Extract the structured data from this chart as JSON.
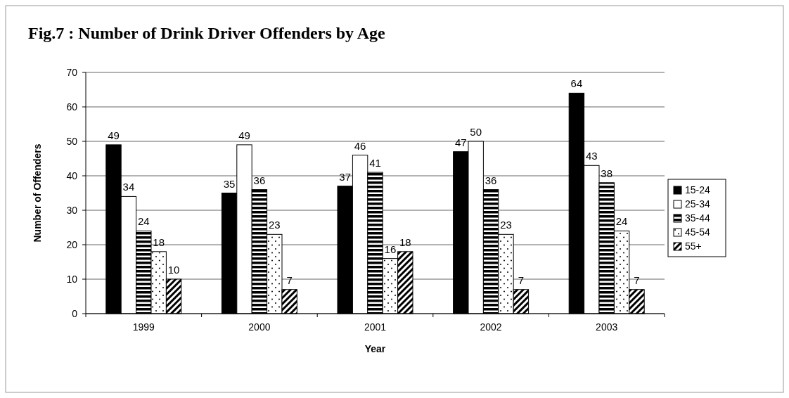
{
  "chart_data": {
    "type": "bar",
    "title": "Fig.7 : Number of Drink Driver Offenders by Age",
    "xlabel": "Year",
    "ylabel": "Number of Offenders",
    "categories": [
      "1999",
      "2000",
      "2001",
      "2002",
      "2003"
    ],
    "series": [
      {
        "name": "15-24",
        "color": "#000000",
        "values": [
          49,
          35,
          37,
          47,
          64
        ]
      },
      {
        "name": "25-34",
        "color": "#ffffff",
        "values": [
          34,
          49,
          46,
          50,
          43
        ]
      },
      {
        "name": "35-44",
        "color": "#000000",
        "values": [
          24,
          36,
          41,
          36,
          38
        ]
      },
      {
        "name": "45-54",
        "color": "#ffffff",
        "values": [
          18,
          23,
          16,
          23,
          24
        ]
      },
      {
        "name": "55+",
        "color": "#000000",
        "values": [
          10,
          7,
          18,
          7,
          7
        ]
      }
    ],
    "ylim": [
      0,
      70
    ],
    "yticks": [
      0,
      10,
      20,
      30,
      40,
      50,
      60,
      70
    ],
    "grid": "y",
    "legend": "right",
    "data_labels": true
  }
}
